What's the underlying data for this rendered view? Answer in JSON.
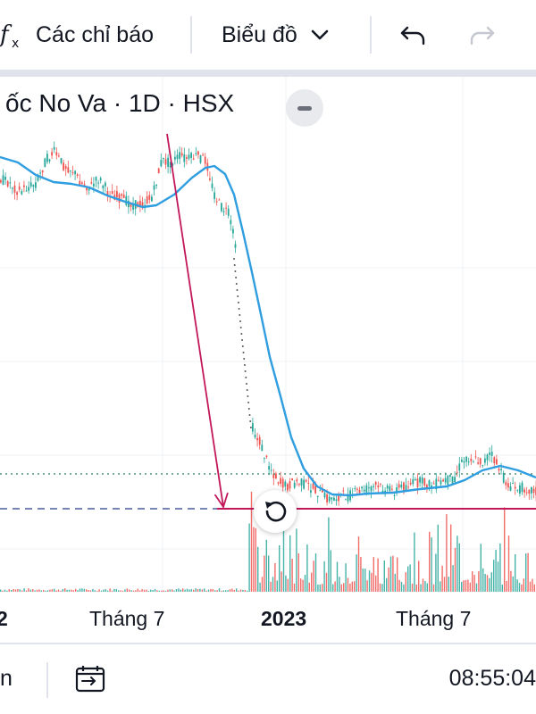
{
  "toolbar": {
    "fx_icon": "function-fx-icon",
    "indicators_label": "Các chỉ báo",
    "chart_type_label": "Biểu đồ",
    "chart_type_icon": "chevron-down-icon",
    "undo_icon": "undo-icon",
    "redo_icon": "redo-icon"
  },
  "legend": {
    "title": "ốc No Va · 1D · HSX",
    "collapse_icon": "minus-icon"
  },
  "reset_icon": "reset-rotate-icon",
  "x_axis": {
    "labels": [
      {
        "text": "2",
        "bold": true
      },
      {
        "text": "Tháng 7",
        "bold": false
      },
      {
        "text": "2023",
        "bold": true
      },
      {
        "text": "Tháng 7",
        "bold": false
      }
    ]
  },
  "bottom_bar": {
    "left_text": "n",
    "compare_icon": "compare-symbols-icon",
    "time": "08:55:04"
  },
  "colors": {
    "up": "#26a69a",
    "down": "#ef5350",
    "ma_line": "#2f9ee0",
    "annotation": "#c2185b",
    "dashed_line": "#4a5d9c",
    "grid": "#eef0f4"
  },
  "chart_data": {
    "type": "candlestick",
    "series": [
      {
        "name": "",
        "note": "price",
        "segments": [
          [
            [
              0,
              200
            ],
            [
              10,
              205
            ],
            [
              20,
              215
            ],
            [
              30,
              210
            ],
            [
              40,
              205
            ],
            [
              50,
              180
            ],
            [
              60,
              170
            ],
            [
              70,
              185
            ],
            [
              80,
              190
            ],
            [
              90,
              205
            ],
            [
              100,
              210
            ],
            [
              110,
              200
            ],
            [
              120,
              215
            ],
            [
              130,
              220
            ],
            [
              140,
              225
            ],
            [
              150,
              230
            ],
            [
              160,
              228
            ],
            [
              170,
              220
            ],
            [
              175,
              200
            ],
            [
              180,
              180
            ],
            [
              190,
              182
            ],
            [
              200,
              175
            ],
            [
              210,
              178
            ],
            [
              220,
              175
            ],
            [
              230,
              180
            ],
            [
              238,
              215
            ],
            [
              245,
              230
            ],
            [
              250,
              235
            ],
            [
              255,
              240
            ],
            [
              262,
              270
            ],
            [
              265,
              280
            ]
          ],
          [
            [
              282,
              480
            ],
            [
              286,
              490
            ],
            [
              290,
              495
            ],
            [
              295,
              510
            ],
            [
              300,
              520
            ],
            [
              305,
              530
            ],
            [
              312,
              540
            ],
            [
              320,
              545
            ],
            [
              330,
              540
            ],
            [
              340,
              542
            ],
            [
              350,
              548
            ],
            [
              360,
              555
            ],
            [
              370,
              560
            ],
            [
              380,
              555
            ],
            [
              390,
              556
            ],
            [
              400,
              550
            ],
            [
              410,
              548
            ],
            [
              420,
              545
            ],
            [
              430,
              548
            ],
            [
              440,
              550
            ],
            [
              450,
              545
            ],
            [
              460,
              542
            ],
            [
              470,
              540
            ],
            [
              480,
              543
            ],
            [
              490,
              542
            ],
            [
              500,
              538
            ],
            [
              508,
              535
            ],
            [
              515,
              520
            ],
            [
              522,
              512
            ],
            [
              530,
              515
            ],
            [
              540,
              518
            ],
            [
              548,
              508
            ],
            [
              555,
              520
            ],
            [
              560,
              530
            ],
            [
              565,
              540
            ],
            [
              570,
              545
            ],
            [
              578,
              548
            ],
            [
              585,
              546
            ],
            [
              592,
              548
            ],
            [
              600,
              550
            ]
          ]
        ]
      },
      {
        "name": "",
        "note": "moving average",
        "points": [
          [
            0,
            176
          ],
          [
            20,
            182
          ],
          [
            40,
            196
          ],
          [
            60,
            204
          ],
          [
            80,
            206
          ],
          [
            100,
            210
          ],
          [
            120,
            219
          ],
          [
            140,
            226
          ],
          [
            160,
            232
          ],
          [
            175,
            230
          ],
          [
            195,
            218
          ],
          [
            215,
            199
          ],
          [
            230,
            188
          ],
          [
            240,
            186
          ],
          [
            252,
            195
          ],
          [
            262,
            218
          ],
          [
            272,
            260
          ],
          [
            282,
            305
          ],
          [
            292,
            352
          ],
          [
            302,
            400
          ],
          [
            314,
            444
          ],
          [
            326,
            490
          ],
          [
            340,
            525
          ],
          [
            355,
            545
          ],
          [
            372,
            554
          ],
          [
            392,
            555
          ],
          [
            412,
            553
          ],
          [
            440,
            552
          ],
          [
            470,
            548
          ],
          [
            500,
            545
          ],
          [
            520,
            538
          ],
          [
            540,
            527
          ],
          [
            560,
            522
          ],
          [
            580,
            527
          ],
          [
            600,
            535
          ]
        ]
      }
    ],
    "annotations": {
      "arrow": {
        "from": [
          187,
          150
        ],
        "to": [
          250,
          568
        ]
      },
      "horizontal_line": {
        "x_from": 243,
        "x_to": 600,
        "y": 570
      },
      "dashed_line": {
        "x_from": 0,
        "x_to": 243,
        "y": 570
      },
      "dotted_line": {
        "y": 531
      }
    },
    "x_tick_labels": [
      "2",
      "Tháng 7",
      "2023",
      "Tháng 7"
    ]
  }
}
